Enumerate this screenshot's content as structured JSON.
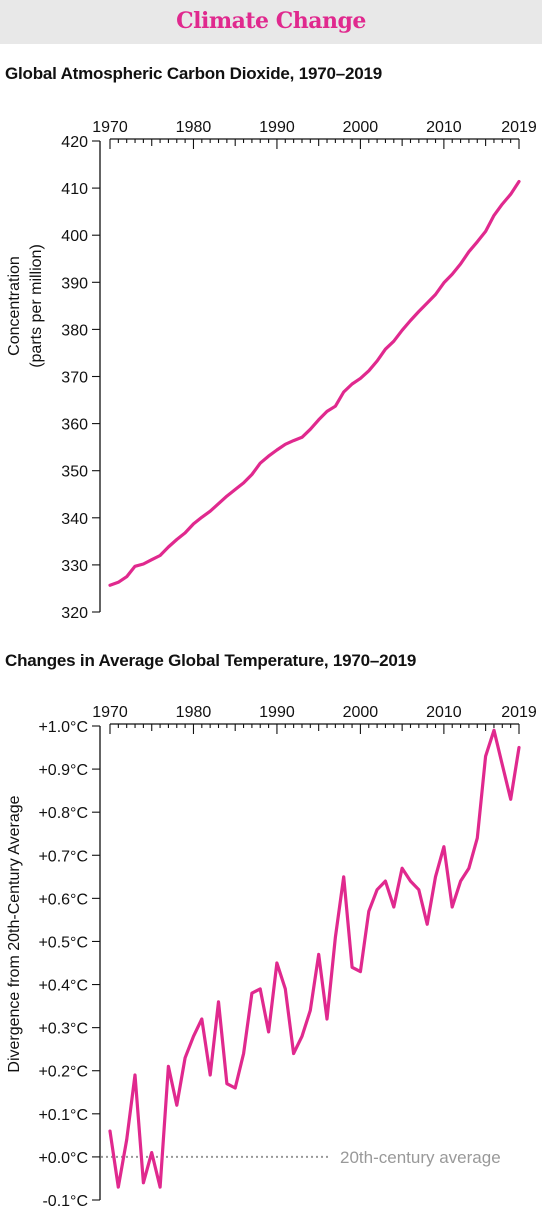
{
  "header": {
    "title": "Climate Change",
    "accent_color": "#e0298e",
    "background": "#e8e8e8"
  },
  "chart_data": [
    {
      "type": "line",
      "title": "Global Atmospheric Carbon Dioxide, 1970–2019",
      "ylabel_line1": "Concentration",
      "ylabel_line2": "(parts per million)",
      "xlim": [
        1970,
        2019
      ],
      "ylim": [
        320,
        420
      ],
      "x_ticks": [
        1970,
        1980,
        1990,
        2000,
        2010,
        2019
      ],
      "y_ticks": [
        320,
        330,
        340,
        350,
        360,
        370,
        380,
        390,
        400,
        410,
        420
      ],
      "y_tick_labels": [
        "320",
        "330",
        "340",
        "350",
        "360",
        "370",
        "380",
        "390",
        "400",
        "410",
        "420"
      ],
      "grid": false,
      "line_color": "#e0298e",
      "series": [
        {
          "x": [
            1970,
            1971,
            1972,
            1973,
            1974,
            1975,
            1976,
            1977,
            1978,
            1979,
            1980,
            1981,
            1982,
            1983,
            1984,
            1985,
            1986,
            1987,
            1988,
            1989,
            1990,
            1991,
            1992,
            1993,
            1994,
            1995,
            1996,
            1997,
            1998,
            1999,
            2000,
            2001,
            2002,
            2003,
            2004,
            2005,
            2006,
            2007,
            2008,
            2009,
            2010,
            2011,
            2012,
            2013,
            2014,
            2015,
            2016,
            2017,
            2018,
            2019
          ],
          "values": [
            325.7,
            326.3,
            327.5,
            329.7,
            330.2,
            331.1,
            332.0,
            333.8,
            335.4,
            336.8,
            338.7,
            340.1,
            341.4,
            343.0,
            344.6,
            346.0,
            347.4,
            349.2,
            351.6,
            353.1,
            354.4,
            355.6,
            356.4,
            357.1,
            358.8,
            360.8,
            362.6,
            363.7,
            366.7,
            368.4,
            369.6,
            371.2,
            373.3,
            375.8,
            377.5,
            379.8,
            381.9,
            383.8,
            385.6,
            387.4,
            389.9,
            391.7,
            393.9,
            396.5,
            398.6,
            400.8,
            404.2,
            406.6,
            408.7,
            411.4
          ]
        }
      ]
    },
    {
      "type": "line",
      "title": "Changes in Average Global Temperature, 1970–2019",
      "ylabel": "Divergence from 20th-Century Average",
      "xlim": [
        1970,
        2019
      ],
      "ylim": [
        -0.1,
        1.0
      ],
      "x_ticks": [
        1970,
        1980,
        1990,
        2000,
        2010,
        2019
      ],
      "y_ticks": [
        -0.1,
        0.0,
        0.1,
        0.2,
        0.3,
        0.4,
        0.5,
        0.6,
        0.7,
        0.8,
        0.9,
        1.0
      ],
      "y_tick_labels": [
        "-0.1°C",
        "+0.0°C",
        "+0.1°C",
        "+0.2°C",
        "+0.3°C",
        "+0.4°C",
        "+0.5°C",
        "+0.6°C",
        "+0.7°C",
        "+0.8°C",
        "+0.9°C",
        "+1.0°C"
      ],
      "grid": false,
      "line_color": "#e0298e",
      "reference_line": {
        "value": 0.0,
        "label": "20th-century average",
        "color": "#999999"
      },
      "series": [
        {
          "x": [
            1970,
            1971,
            1972,
            1973,
            1974,
            1975,
            1976,
            1977,
            1978,
            1979,
            1980,
            1981,
            1982,
            1983,
            1984,
            1985,
            1986,
            1987,
            1988,
            1989,
            1990,
            1991,
            1992,
            1993,
            1994,
            1995,
            1996,
            1997,
            1998,
            1999,
            2000,
            2001,
            2002,
            2003,
            2004,
            2005,
            2006,
            2007,
            2008,
            2009,
            2010,
            2011,
            2012,
            2013,
            2014,
            2015,
            2016,
            2017,
            2018,
            2019
          ],
          "values": [
            0.06,
            -0.07,
            0.04,
            0.19,
            -0.06,
            0.01,
            -0.07,
            0.21,
            0.12,
            0.23,
            0.28,
            0.32,
            0.19,
            0.36,
            0.17,
            0.16,
            0.24,
            0.38,
            0.39,
            0.29,
            0.45,
            0.39,
            0.24,
            0.28,
            0.34,
            0.47,
            0.32,
            0.51,
            0.65,
            0.44,
            0.43,
            0.57,
            0.62,
            0.64,
            0.58,
            0.67,
            0.64,
            0.62,
            0.54,
            0.65,
            0.72,
            0.58,
            0.64,
            0.67,
            0.74,
            0.93,
            0.99,
            0.91,
            0.83,
            0.95
          ]
        }
      ]
    }
  ]
}
